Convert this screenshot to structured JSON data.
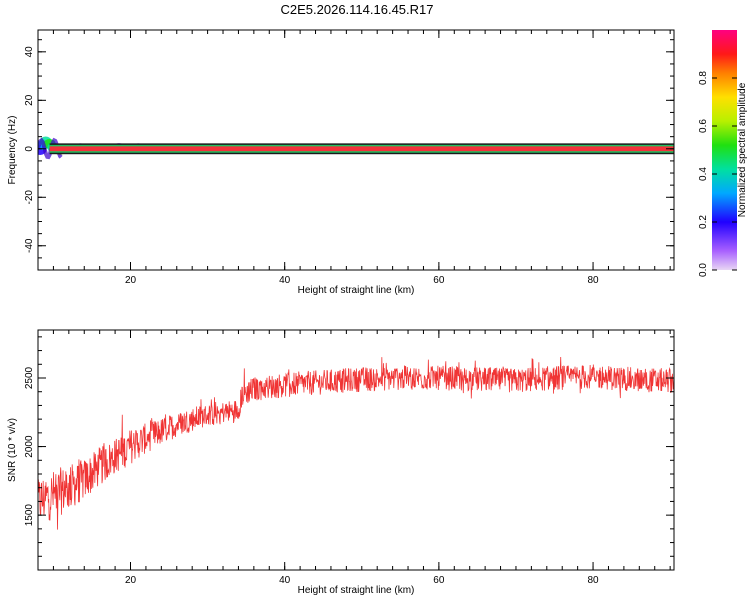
{
  "title": "C2E5.2026.114.16.45.R17",
  "colors": {
    "signal_band": "#f2323a",
    "band_outline": "#000000",
    "snr_line": "#f03434"
  },
  "chart_data": [
    {
      "id": "spectrogram",
      "type": "heatmap",
      "xlabel": "Height of straight line (km)",
      "ylabel": "Frequency (Hz)",
      "xlim": [
        8,
        90.5
      ],
      "ylim": [
        -50,
        49
      ],
      "xticks": [
        20,
        40,
        60,
        80
      ],
      "yticks": [
        -40,
        -20,
        0,
        20,
        40
      ],
      "band": {
        "center_hz": 0,
        "half_width_hz": 1,
        "x_start_km": 9.5,
        "x_end_km": 90.5,
        "normalized_amplitude": 0.95
      },
      "near_start_blobs": [
        {
          "x_km": 8.3,
          "y_hz": -0.5,
          "amplitude": 0.15
        },
        {
          "x_km": 8.6,
          "y_hz": 1.5,
          "amplitude": 0.25
        },
        {
          "x_km": 9.0,
          "y_hz": 3.0,
          "amplitude": 0.35
        },
        {
          "x_km": 9.5,
          "y_hz": 2.0,
          "amplitude": 0.45
        },
        {
          "x_km": 10.0,
          "y_hz": 0.5,
          "amplitude": 0.35
        },
        {
          "x_km": 10.8,
          "y_hz": -0.5,
          "amplitude": 0.55
        },
        {
          "x_km": 12.0,
          "y_hz": 0.0,
          "amplitude": 0.4
        },
        {
          "x_km": 13.5,
          "y_hz": 0.2,
          "amplitude": 0.08
        },
        {
          "x_km": 18.5,
          "y_hz": 0.3,
          "amplitude": 0.08
        },
        {
          "x_km": 21.0,
          "y_hz": 0.2,
          "amplitude": 0.06
        }
      ],
      "colorbar": {
        "label": "Normalized spectral amplitude",
        "range": [
          0,
          1
        ],
        "ticks": [
          0.0,
          0.2,
          0.4,
          0.6,
          0.8
        ]
      }
    },
    {
      "id": "snr",
      "type": "line",
      "xlabel": "Height of straight line (km)",
      "ylabel": "SNR (10 * v/v)",
      "xlim": [
        8,
        90.5
      ],
      "ylim": [
        1100,
        2850
      ],
      "xticks": [
        20,
        40,
        60,
        80
      ],
      "yticks": [
        1500,
        2000,
        2500
      ],
      "series": [
        {
          "x": [
            8,
            10,
            12,
            14,
            16,
            18,
            20,
            22,
            24,
            26,
            28,
            30,
            32,
            34,
            34.5,
            36,
            40,
            45,
            50,
            55,
            60,
            65,
            70,
            75,
            80,
            85,
            90
          ],
          "y": [
            1600,
            1650,
            1700,
            1760,
            1850,
            1930,
            2000,
            2060,
            2110,
            2160,
            2200,
            2230,
            2250,
            2270,
            2380,
            2420,
            2450,
            2470,
            2490,
            2500,
            2500,
            2490,
            2480,
            2500,
            2510,
            2490,
            2480
          ],
          "noise_amplitude": [
            180,
            180,
            170,
            150,
            140,
            130,
            130,
            110,
            100,
            90,
            90,
            80,
            80,
            80,
            90,
            90,
            90,
            90,
            90,
            90,
            90,
            90,
            90,
            90,
            90,
            90,
            90
          ]
        }
      ]
    }
  ]
}
